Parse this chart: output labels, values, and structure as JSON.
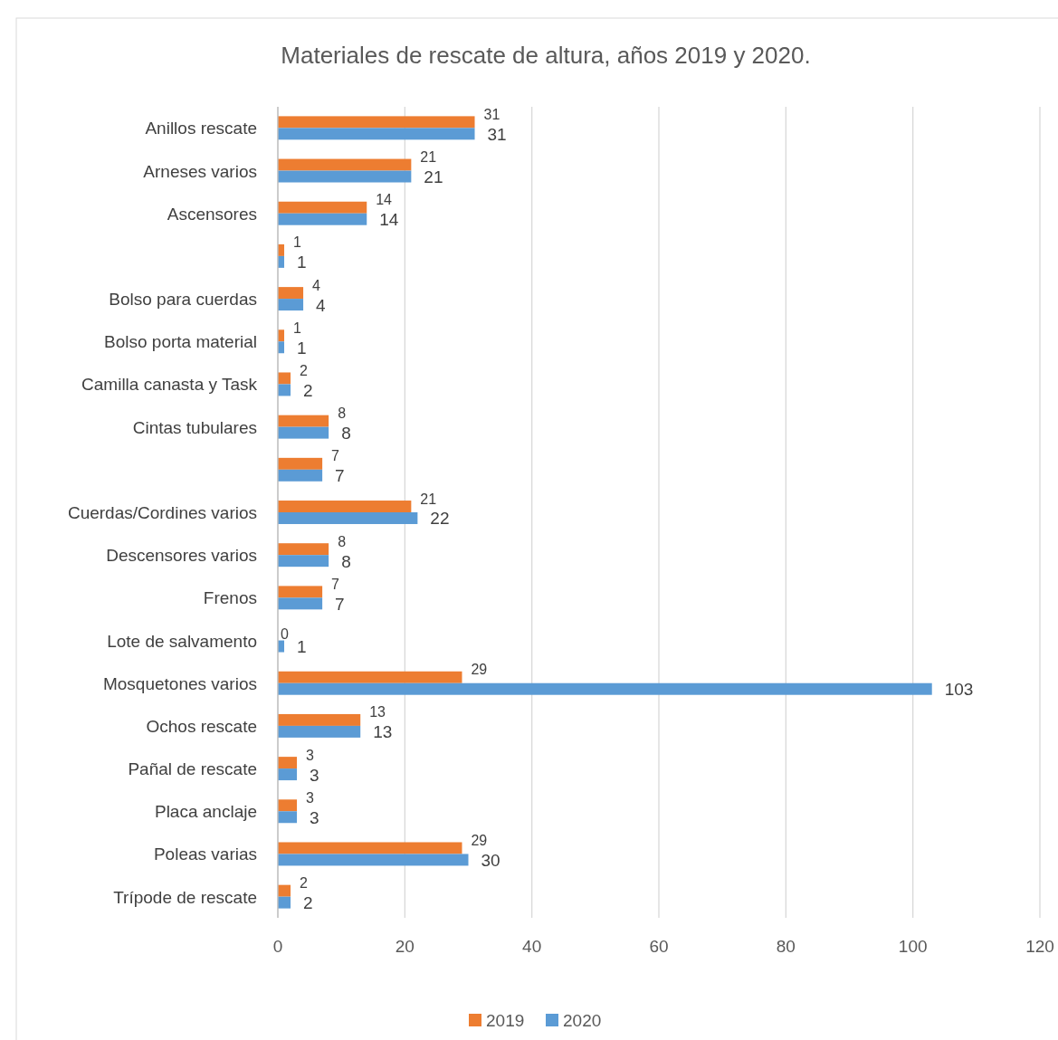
{
  "chart_data": {
    "type": "bar",
    "orientation": "horizontal",
    "title": "Materiales de rescate de altura, años 2019 y 2020.",
    "categories": [
      "Anillos rescate",
      "Arneses varios",
      "Ascensores",
      null,
      "Bolso para cuerdas",
      "Bolso porta material",
      "Camilla canasta y Task",
      "Cintas tubulares",
      null,
      "Cuerdas/Cordines varios",
      "Descensores varios",
      "Frenos",
      "Lote de salvamento",
      "Mosquetones varios",
      "Ochos rescate",
      "Pañal de rescate",
      "Placa anclaje",
      "Poleas varias",
      "Trípode de rescate"
    ],
    "series": [
      {
        "name": "2019",
        "color": "#ed7d31",
        "values": [
          31,
          21,
          14,
          1,
          4,
          1,
          2,
          8,
          7,
          21,
          8,
          7,
          0,
          29,
          13,
          3,
          3,
          29,
          2
        ]
      },
      {
        "name": "2020",
        "color": "#5b9bd5",
        "values": [
          31,
          21,
          14,
          1,
          4,
          1,
          2,
          8,
          7,
          22,
          8,
          7,
          1,
          103,
          13,
          3,
          3,
          30,
          2
        ]
      }
    ],
    "xlim": [
      0,
      120
    ],
    "xticks": [
      0,
      20,
      40,
      60,
      80,
      100,
      120
    ],
    "grid": "x",
    "legend": "bottom",
    "data_labels": true
  }
}
